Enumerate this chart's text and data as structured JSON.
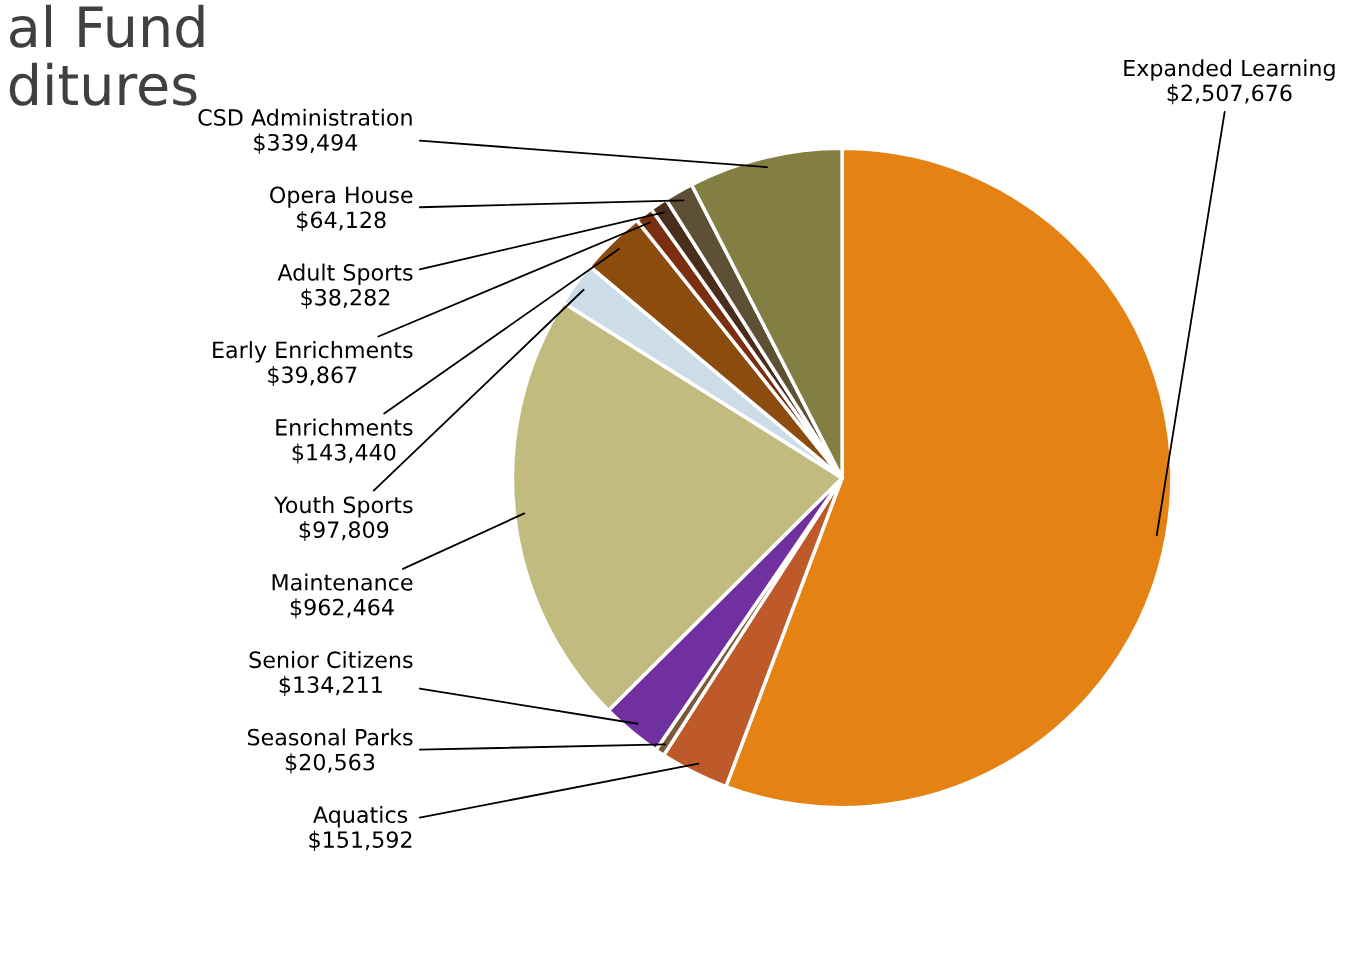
{
  "chart_data": {
    "type": "pie",
    "title": "al Fund\nditures",
    "categories": [
      "Expanded Learning",
      "Aquatics",
      "Seasonal Parks",
      "Senior Citizens",
      "Maintenance",
      "Youth Sports",
      "Enrichments",
      "Early Enrichments",
      "Adult Sports",
      "Opera House",
      "CSD Administration"
    ],
    "values": [
      2507676,
      151592,
      20563,
      134211,
      962464,
      97809,
      143440,
      39867,
      38282,
      64128,
      339494
    ],
    "value_labels": [
      "$2,507,676",
      "$151,592",
      "$20,563",
      "$134,211",
      "$962,464",
      "$97,809",
      "$143,440",
      "$39,867",
      "$38,282",
      "$64,128",
      "$339,494"
    ],
    "colors": [
      "#e48213",
      "#be5a2a",
      "#7a5a3a",
      "#7030a0",
      "#c2bb80",
      "#cddde8",
      "#8b4c0e",
      "#7a3010",
      "#4a2e1c",
      "#5e5034",
      "#837e42"
    ]
  }
}
